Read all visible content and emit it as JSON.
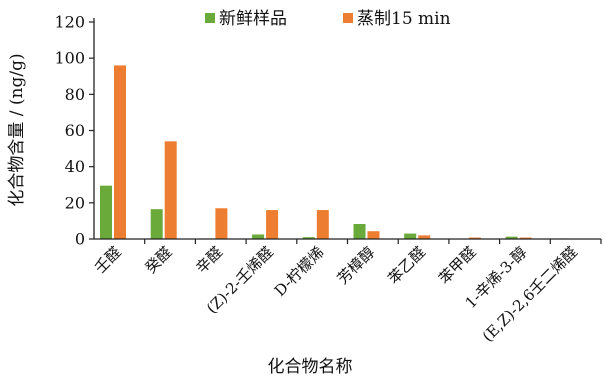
{
  "chart_data": {
    "type": "bar",
    "ylabel": "化合物含量 / (ng/g)",
    "xlabel": "化合物名称",
    "ylim": [
      0,
      120
    ],
    "yticks": [
      0,
      20,
      40,
      60,
      80,
      100,
      120
    ],
    "grid": false,
    "legend_position": "top-right",
    "categories": [
      "壬醛",
      "癸醛",
      "辛醛",
      "(Z)-2-壬烯醛",
      "D-柠檬烯",
      "芳樟醇",
      "苯乙醛",
      "苯甲醛",
      "1-辛烯-3-醇",
      "(E,Z)-2,6壬二烯醛"
    ],
    "series": [
      {
        "name": "新鲜样品",
        "color": "#6aaa3a",
        "values": [
          29.5,
          16.5,
          0.3,
          2.5,
          1.0,
          8.3,
          3.0,
          0.2,
          1.3,
          0.3
        ]
      },
      {
        "name": "蒸制15 min",
        "color": "#ed7d31",
        "values": [
          96.0,
          54.0,
          17.0,
          16.0,
          16.0,
          4.3,
          2.0,
          0.8,
          0.8,
          0.2
        ]
      }
    ]
  }
}
